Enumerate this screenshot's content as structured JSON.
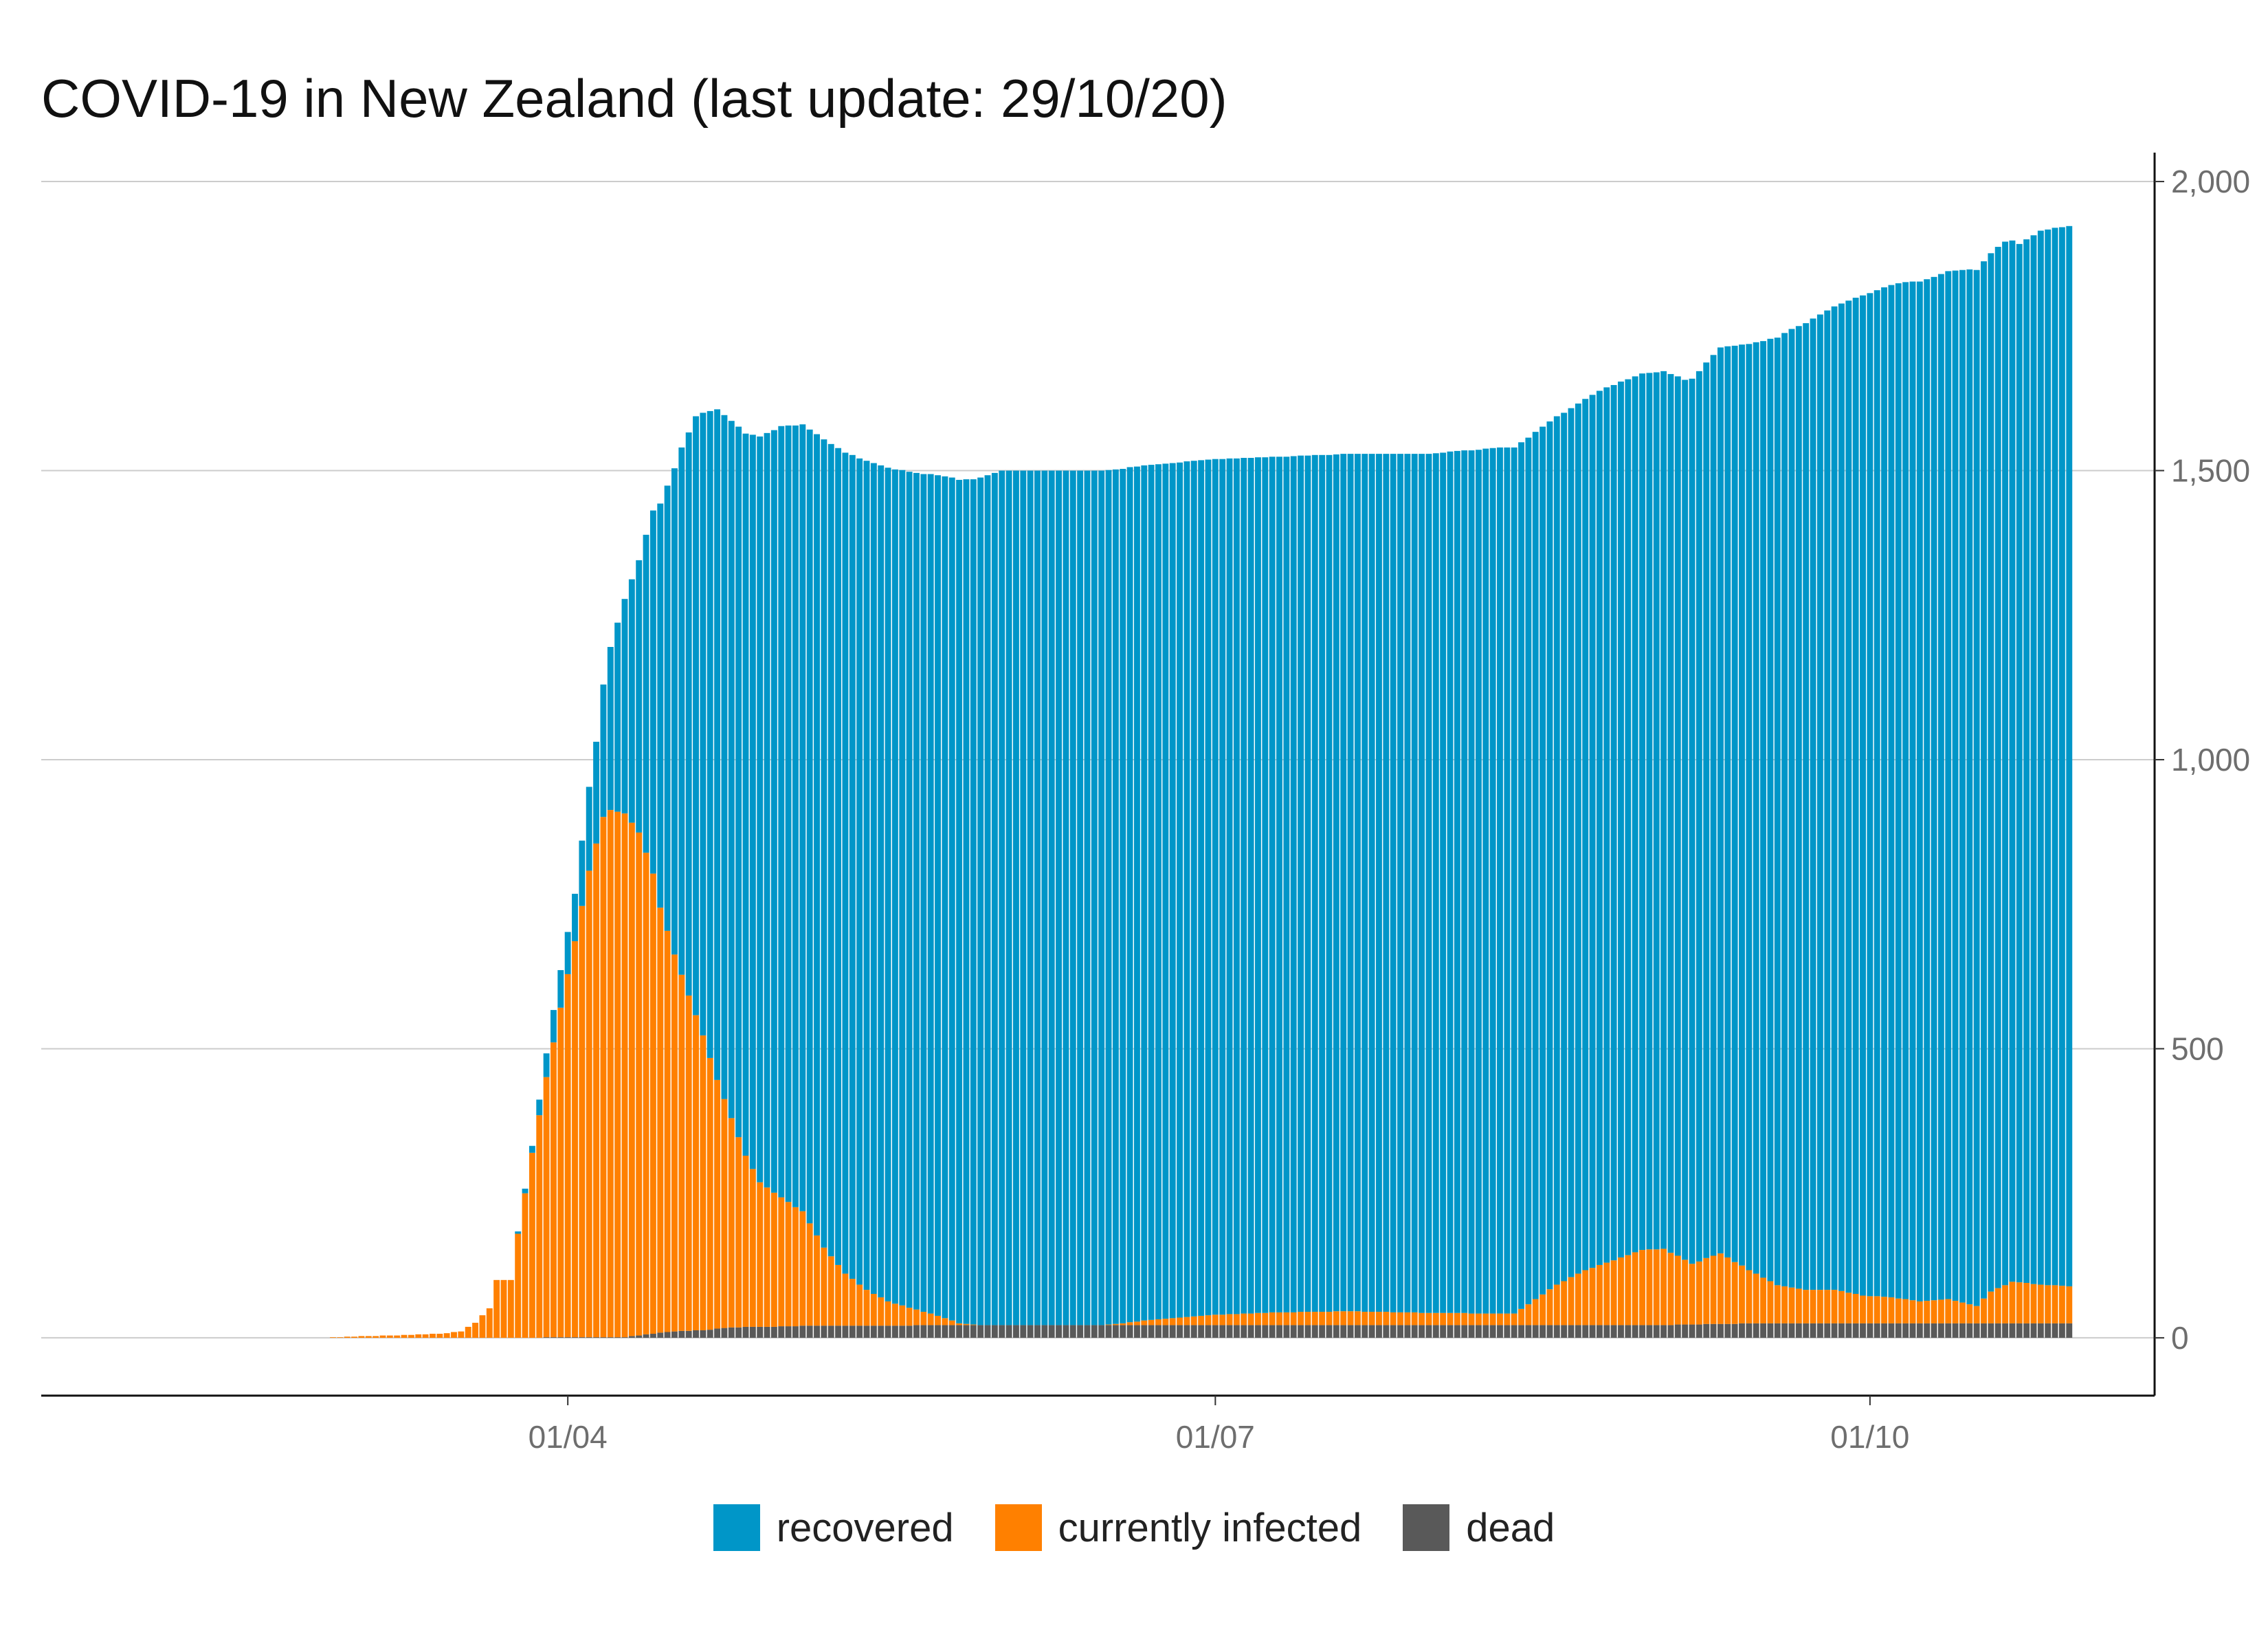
{
  "chart_data": {
    "type": "bar",
    "stacked": true,
    "title": "COVID-19 in New Zealand (last update: 29/10/20)",
    "xlabel": "",
    "ylabel": "",
    "y_axis_position": "right",
    "ylim": [
      -100,
      2050
    ],
    "y_ticks": [
      0,
      500,
      1000,
      1500,
      2000
    ],
    "y_tick_labels": [
      "0",
      "500",
      "1,000",
      "1,500",
      "2,000"
    ],
    "x_ticks": [
      {
        "date": "2020-04-01",
        "label": "01/04"
      },
      {
        "date": "2020-07-01",
        "label": "01/07"
      },
      {
        "date": "2020-10-01",
        "label": "01/10"
      }
    ],
    "x_range": [
      "2020-01-18",
      "2020-11-10"
    ],
    "first_date": "2020-01-22",
    "last_date": "2020-10-29",
    "grid": "horizontal",
    "legend_position": "bottom",
    "series": [
      {
        "name": "recovered",
        "color": "#0096c8",
        "keyframes": [
          [
            "2020-03-01",
            0
          ],
          [
            "2020-03-24",
            0
          ],
          [
            "2020-03-27",
            12
          ],
          [
            "2020-03-30",
            56
          ],
          [
            "2020-04-02",
            82
          ],
          [
            "2020-04-05",
            176
          ],
          [
            "2020-04-07",
            282
          ],
          [
            "2020-04-09",
            371
          ],
          [
            "2020-04-11",
            471
          ],
          [
            "2020-04-13",
            628
          ],
          [
            "2020-04-15",
            770
          ],
          [
            "2020-04-17",
            912
          ],
          [
            "2020-04-19",
            1036
          ],
          [
            "2020-04-22",
            1160
          ],
          [
            "2020-04-25",
            1229
          ],
          [
            "2020-04-28",
            1290
          ],
          [
            "2020-05-01",
            1334
          ],
          [
            "2020-05-04",
            1361
          ],
          [
            "2020-05-07",
            1398
          ],
          [
            "2020-05-10",
            1420
          ],
          [
            "2020-05-13",
            1434
          ],
          [
            "2020-05-16",
            1442
          ],
          [
            "2020-05-20",
            1447
          ],
          [
            "2020-05-24",
            1456
          ],
          [
            "2020-05-28",
            1462
          ],
          [
            "2020-06-01",
            1478
          ],
          [
            "2020-06-15",
            1478
          ],
          [
            "2020-06-22",
            1479
          ],
          [
            "2020-07-01",
            1480
          ],
          [
            "2020-07-10",
            1480
          ],
          [
            "2020-07-20",
            1483
          ],
          [
            "2020-07-31",
            1486
          ],
          [
            "2020-08-10",
            1498
          ],
          [
            "2020-08-12",
            1498
          ],
          [
            "2020-08-20",
            1503
          ],
          [
            "2020-08-25",
            1514
          ],
          [
            "2020-08-31",
            1516
          ],
          [
            "2020-09-05",
            1522
          ],
          [
            "2020-09-10",
            1567
          ],
          [
            "2020-09-15",
            1611
          ],
          [
            "2020-09-20",
            1658
          ],
          [
            "2020-09-25",
            1694
          ],
          [
            "2020-09-30",
            1730
          ],
          [
            "2020-10-05",
            1756
          ],
          [
            "2020-10-10",
            1770
          ],
          [
            "2020-10-15",
            1790
          ],
          [
            "2020-10-18",
            1796
          ],
          [
            "2020-10-20",
            1805
          ],
          [
            "2020-10-22",
            1796
          ],
          [
            "2020-10-25",
            1823
          ],
          [
            "2020-10-29",
            1834
          ]
        ]
      },
      {
        "name": "currently infected",
        "color": "#ff8000",
        "keyframes": [
          [
            "2020-01-22",
            0
          ],
          [
            "2020-02-27",
            0
          ],
          [
            "2020-02-28",
            1
          ],
          [
            "2020-03-04",
            3
          ],
          [
            "2020-03-10",
            5
          ],
          [
            "2020-03-14",
            7
          ],
          [
            "2020-03-17",
            11
          ],
          [
            "2020-03-19",
            26
          ],
          [
            "2020-03-21",
            51
          ],
          [
            "2020-03-22",
            100
          ],
          [
            "2020-03-24",
            100
          ],
          [
            "2020-03-25",
            180
          ],
          [
            "2020-03-27",
            320
          ],
          [
            "2020-03-29",
            450
          ],
          [
            "2020-03-31",
            570
          ],
          [
            "2020-04-02",
            685
          ],
          [
            "2020-04-04",
            807
          ],
          [
            "2020-04-06",
            900
          ],
          [
            "2020-04-07",
            912
          ],
          [
            "2020-04-09",
            906
          ],
          [
            "2020-04-11",
            870
          ],
          [
            "2020-04-13",
            796
          ],
          [
            "2020-04-14",
            735
          ],
          [
            "2020-04-16",
            652
          ],
          [
            "2020-04-18",
            580
          ],
          [
            "2020-04-20",
            510
          ],
          [
            "2020-04-22",
            430
          ],
          [
            "2020-04-24",
            362
          ],
          [
            "2020-04-26",
            296
          ],
          [
            "2020-04-28",
            250
          ],
          [
            "2020-05-01",
            223
          ],
          [
            "2020-05-04",
            198
          ],
          [
            "2020-05-07",
            135
          ],
          [
            "2020-05-10",
            90
          ],
          [
            "2020-05-13",
            62
          ],
          [
            "2020-05-16",
            42
          ],
          [
            "2020-05-20",
            27
          ],
          [
            "2020-05-24",
            12
          ],
          [
            "2020-05-26",
            3
          ],
          [
            "2020-05-29",
            0
          ],
          [
            "2020-06-15",
            0
          ],
          [
            "2020-06-18",
            3
          ],
          [
            "2020-06-22",
            9
          ],
          [
            "2020-06-26",
            13
          ],
          [
            "2020-07-01",
            18
          ],
          [
            "2020-07-10",
            22
          ],
          [
            "2020-07-20",
            24
          ],
          [
            "2020-07-31",
            21
          ],
          [
            "2020-08-10",
            20
          ],
          [
            "2020-08-12",
            20
          ],
          [
            "2020-08-14",
            36
          ],
          [
            "2020-08-18",
            70
          ],
          [
            "2020-08-22",
            95
          ],
          [
            "2020-08-26",
            112
          ],
          [
            "2020-08-30",
            130
          ],
          [
            "2020-09-02",
            132
          ],
          [
            "2020-09-06",
            105
          ],
          [
            "2020-09-10",
            122
          ],
          [
            "2020-09-14",
            92
          ],
          [
            "2020-09-18",
            66
          ],
          [
            "2020-09-22",
            58
          ],
          [
            "2020-09-26",
            58
          ],
          [
            "2020-09-30",
            48
          ],
          [
            "2020-10-04",
            45
          ],
          [
            "2020-10-08",
            38
          ],
          [
            "2020-10-12",
            42
          ],
          [
            "2020-10-16",
            30
          ],
          [
            "2020-10-18",
            55
          ],
          [
            "2020-10-21",
            72
          ],
          [
            "2020-10-25",
            67
          ],
          [
            "2020-10-29",
            64
          ]
        ]
      },
      {
        "name": "dead",
        "color": "#595959",
        "keyframes": [
          [
            "2020-01-22",
            0
          ],
          [
            "2020-03-28",
            0
          ],
          [
            "2020-03-29",
            1
          ],
          [
            "2020-04-09",
            1
          ],
          [
            "2020-04-11",
            4
          ],
          [
            "2020-04-14",
            9
          ],
          [
            "2020-04-16",
            11
          ],
          [
            "2020-04-18",
            12
          ],
          [
            "2020-04-20",
            13
          ],
          [
            "2020-04-23",
            17
          ],
          [
            "2020-04-26",
            19
          ],
          [
            "2020-04-29",
            19
          ],
          [
            "2020-05-05",
            21
          ],
          [
            "2020-05-15",
            21
          ],
          [
            "2020-05-24",
            22
          ],
          [
            "2020-09-03",
            22
          ],
          [
            "2020-09-05",
            23
          ],
          [
            "2020-09-11",
            24
          ],
          [
            "2020-09-14",
            25
          ],
          [
            "2020-10-29",
            25
          ]
        ]
      }
    ]
  }
}
